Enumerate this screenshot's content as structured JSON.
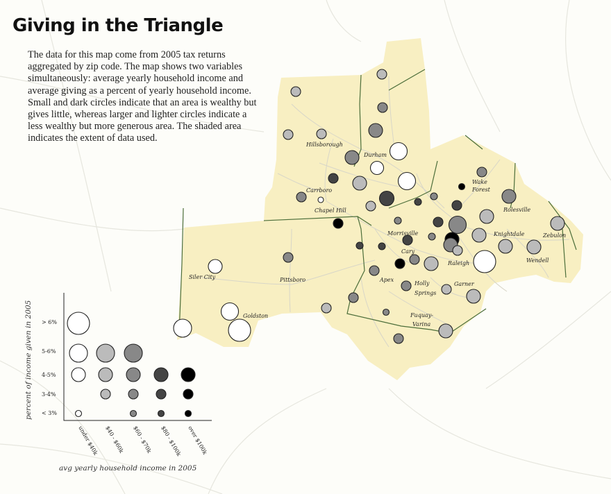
{
  "title": "Giving in the Triangle",
  "description": "The data for this map come from 2005 tax returns aggregated by zip code. The map shows two variables simultaneously: average yearly household income and average giving as a percent of yearly household income. Small and dark circles indicate that an area is wealthy but gives little, whereas larger and lighter circles indicate a less wealthy but more generous area. The shaded area indicates the extent of data used.",
  "towns": [
    "Hillsborough",
    "Durham",
    "Carrboro",
    "Chapel Hill",
    "Wake",
    "Forest",
    "Rolesville",
    "Morrisville",
    "Knightdale",
    "Zebulon",
    "Cary",
    "Raleigh",
    "Wendell",
    "Siler City",
    "Pittsboro",
    "Apex",
    "Holly",
    "Springs",
    "Garner",
    "Goldston",
    "Fuquay-",
    "Varina"
  ],
  "legend": {
    "y_axis_label": "percent of income given in 2005",
    "x_axis_label": "avg yearly household income in 2005",
    "giving_categories": [
      "> 6%",
      "5-6%",
      "4-5%",
      "3-4%",
      "< 3%"
    ],
    "income_categories": [
      "under $40k",
      "$40 - $60k",
      "$60 - $70k",
      "$80 - $100k",
      "over $100k"
    ],
    "income_fill_colors": [
      "#ffffff",
      "#bbbbbb",
      "#888888",
      "#444444",
      "#000000"
    ],
    "giving_size_rank": [
      5,
      4,
      3,
      2,
      1
    ]
  },
  "map_style": {
    "data_extent_fill": "#f8efc2",
    "background": "#fdfdf9",
    "road_color": "#d9d9d2",
    "county_line_color": "#4c6e3a"
  }
}
